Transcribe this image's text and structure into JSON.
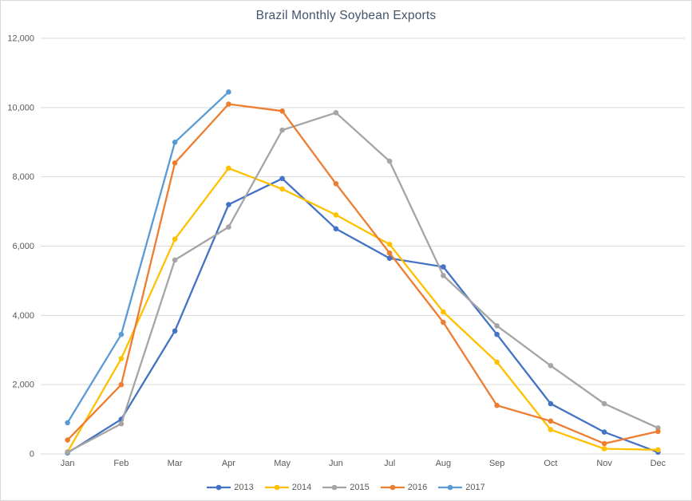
{
  "chart": {
    "title": "Brazil Monthly Soybean Exports"
  },
  "chart_data": {
    "type": "line",
    "title": "Brazil Monthly Soybean Exports",
    "xlabel": "",
    "ylabel": "",
    "categories": [
      "Jan",
      "Feb",
      "Mar",
      "Apr",
      "May",
      "Jun",
      "Jul",
      "Aug",
      "Sep",
      "Oct",
      "Nov",
      "Dec"
    ],
    "series": [
      {
        "name": "2013",
        "color": "#4472C4",
        "values": [
          30,
          1000,
          3550,
          7200,
          7950,
          6500,
          5650,
          5400,
          3450,
          1450,
          630,
          50
        ]
      },
      {
        "name": "2014",
        "color": "#FFC000",
        "values": [
          60,
          2750,
          6200,
          8250,
          7650,
          6900,
          6050,
          4100,
          2650,
          700,
          150,
          120
        ]
      },
      {
        "name": "2015",
        "color": "#A5A5A5",
        "values": [
          50,
          870,
          5600,
          6550,
          9350,
          9850,
          8450,
          5150,
          3700,
          2550,
          1450,
          750
        ]
      },
      {
        "name": "2016",
        "color": "#ED7D31",
        "values": [
          400,
          2000,
          8400,
          10100,
          9900,
          7800,
          5800,
          3800,
          1400,
          950,
          300,
          650
        ]
      },
      {
        "name": "2017",
        "color": "#5B9BD5",
        "values": [
          900,
          3450,
          9000,
          10450,
          null,
          null,
          null,
          null,
          null,
          null,
          null,
          null
        ]
      }
    ],
    "ylim": [
      0,
      12000
    ],
    "ytick_step": 2000,
    "ytick_labels": [
      "0",
      "2,000",
      "4,000",
      "6,000",
      "8,000",
      "10,000",
      "12,000"
    ],
    "grid": "horizontal",
    "gridline_color": "#d9d9d9",
    "axis_label_color": "#595959",
    "legend_position": "bottom"
  }
}
